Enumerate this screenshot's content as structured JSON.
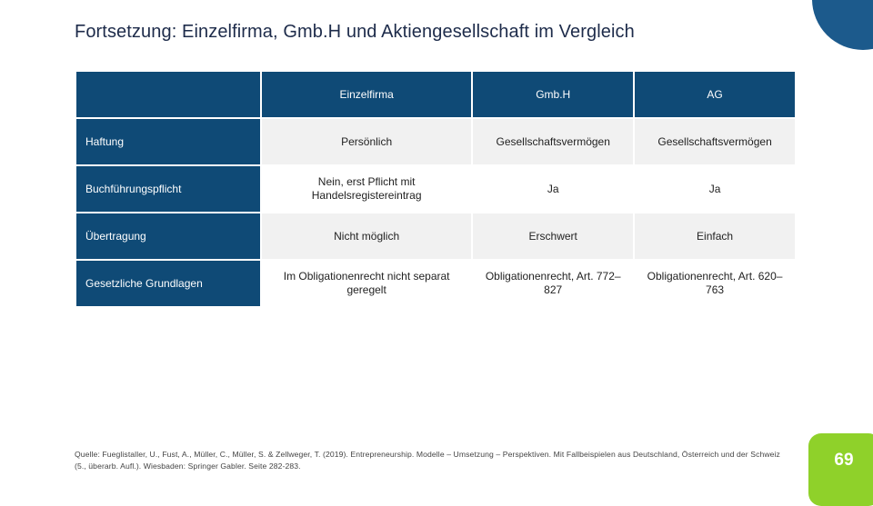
{
  "title": "Fortsetzung: Einzelfirma, Gmb.H und Aktiengesellschaft im Vergleich",
  "table": {
    "columns": [
      "",
      "Einzelfirma",
      "Gmb.H",
      "AG"
    ],
    "rows": [
      {
        "label": "Haftung",
        "cells": [
          "Persönlich",
          "Gesellschaftsvermögen",
          "Gesellschaftsvermögen"
        ]
      },
      {
        "label": "Buchführungspflicht",
        "cells": [
          "Nein, erst Pflicht mit Handelsregistereintrag",
          "Ja",
          "Ja"
        ]
      },
      {
        "label": "Übertragung",
        "cells": [
          "Nicht möglich",
          "Erschwert",
          "Einfach"
        ]
      },
      {
        "label": "Gesetzliche Grundlagen",
        "cells": [
          "Im Obligationenrecht nicht separat geregelt",
          "Obligationenrecht, Art. 772–827",
          "Obligationenrecht, Art. 620–763"
        ]
      }
    ]
  },
  "source": "Quelle: Fueglistaller, U., Fust, A., Müller, C., Müller, S. & Zellweger, T. (2019). Entrepreneurship. Modelle – Umsetzung – Perspektiven. Mit Fallbeispielen aus Deutschland, Österreich und der Schweiz (5., überarb. Aufl.). Wiesbaden: Springer Gabler. Seite 282-283.",
  "page_number": "69",
  "colors": {
    "header": "#0f4a76",
    "accent_circle": "#1c5a8c",
    "page_badge": "#8fd12a"
  }
}
